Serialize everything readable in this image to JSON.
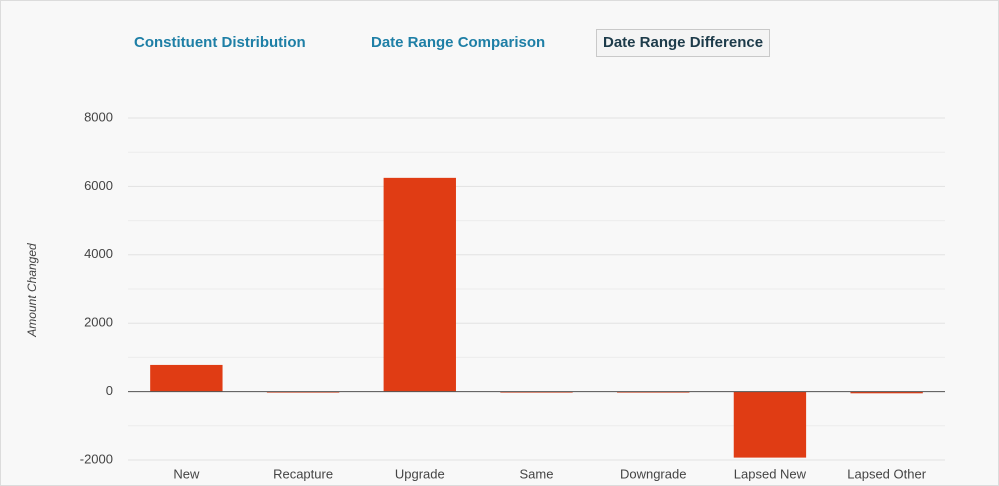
{
  "tabs": [
    "Constituent Distribution",
    "Date Range Comparison",
    "Date Range Difference"
  ],
  "chart_data": {
    "type": "bar",
    "y_label": "Amount Changed",
    "categories": [
      "New",
      "Recapture",
      "Upgrade",
      "Same",
      "Downgrade",
      "Lapsed New",
      "Lapsed Other"
    ],
    "values": [
      780,
      0,
      6250,
      0,
      0,
      -1930,
      -50
    ],
    "color": "#e03c14",
    "ylim": [
      -2000,
      8000
    ],
    "yticks": [
      -2000,
      0,
      2000,
      4000,
      6000,
      8000
    ],
    "grid": true
  }
}
